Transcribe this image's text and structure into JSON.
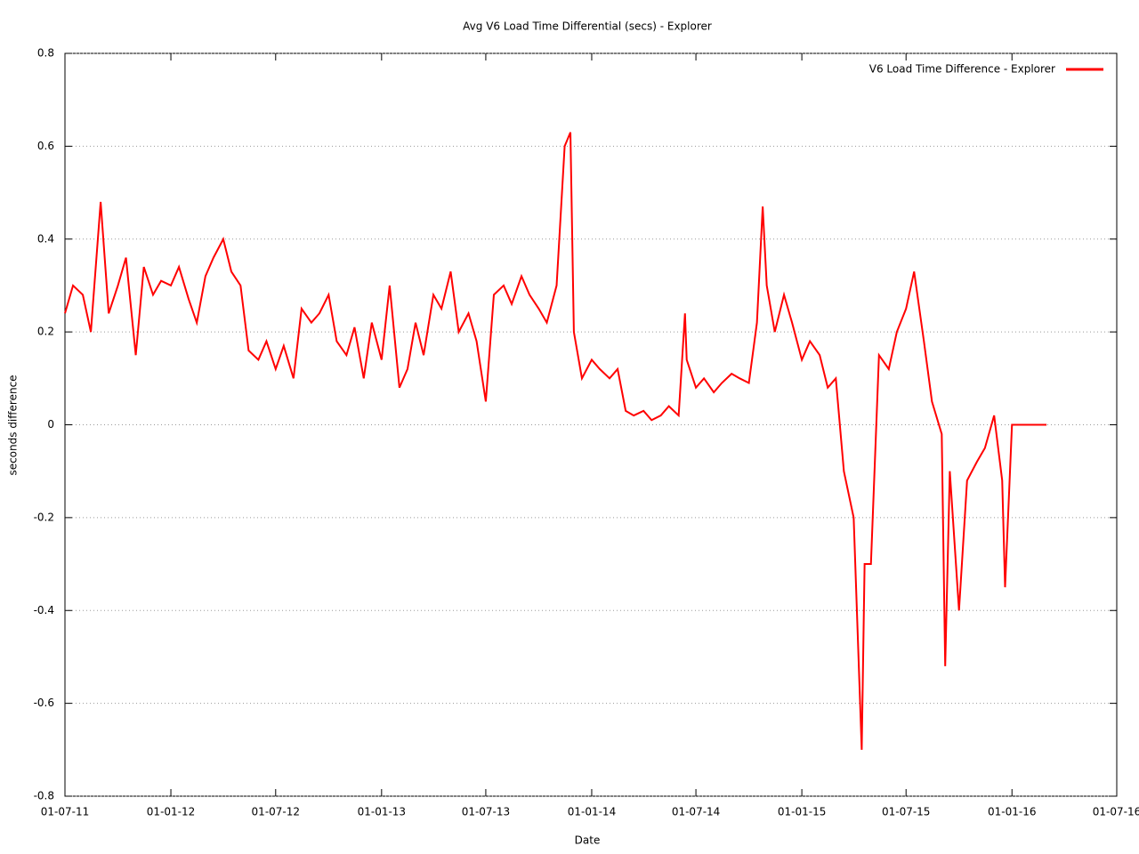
{
  "chart_data": {
    "type": "line",
    "title": "Avg V6 Load Time Differential (secs) - Explorer",
    "x_label": "Date",
    "y_label": "seconds difference",
    "legend": "top-right",
    "grid": "y",
    "xlim": [
      "2011-07-01",
      "2016-07-01"
    ],
    "xticks": [
      {
        "value": "2011-07-01",
        "label": "01-07-11"
      },
      {
        "value": "2012-01-01",
        "label": "01-01-12"
      },
      {
        "value": "2012-07-01",
        "label": "01-07-12"
      },
      {
        "value": "2013-01-01",
        "label": "01-01-13"
      },
      {
        "value": "2013-07-01",
        "label": "01-07-13"
      },
      {
        "value": "2014-01-01",
        "label": "01-01-14"
      },
      {
        "value": "2014-07-01",
        "label": "01-07-14"
      },
      {
        "value": "2015-01-01",
        "label": "01-01-15"
      },
      {
        "value": "2015-07-01",
        "label": "01-07-15"
      },
      {
        "value": "2016-01-01",
        "label": "01-01-16"
      },
      {
        "value": "2016-07-01",
        "label": "01-07-16"
      }
    ],
    "ylim": [
      -0.8,
      0.8
    ],
    "yticks": [
      -0.8,
      -0.6,
      -0.4,
      -0.2,
      0,
      0.2,
      0.4,
      0.6,
      0.8
    ],
    "x": [
      "2011-07-01",
      "2011-07-15",
      "2011-08-01",
      "2011-08-15",
      "2011-09-01",
      "2011-09-15",
      "2011-10-01",
      "2011-10-15",
      "2011-11-01",
      "2011-11-15",
      "2011-12-01",
      "2011-12-15",
      "2012-01-01",
      "2012-01-15",
      "2012-02-01",
      "2012-02-15",
      "2012-03-01",
      "2012-03-15",
      "2012-04-01",
      "2012-04-15",
      "2012-05-01",
      "2012-05-15",
      "2012-06-01",
      "2012-06-15",
      "2012-07-01",
      "2012-07-15",
      "2012-08-01",
      "2012-08-15",
      "2012-09-01",
      "2012-09-15",
      "2012-10-01",
      "2012-10-15",
      "2012-11-01",
      "2012-11-15",
      "2012-12-01",
      "2012-12-15",
      "2013-01-01",
      "2013-01-15",
      "2013-02-01",
      "2013-02-15",
      "2013-03-01",
      "2013-03-15",
      "2013-04-01",
      "2013-04-15",
      "2013-05-01",
      "2013-05-15",
      "2013-06-01",
      "2013-06-15",
      "2013-07-01",
      "2013-07-15",
      "2013-08-01",
      "2013-08-15",
      "2013-09-01",
      "2013-09-15",
      "2013-10-01",
      "2013-10-15",
      "2013-11-01",
      "2013-11-15",
      "2013-11-25",
      "2013-12-01",
      "2013-12-15",
      "2014-01-01",
      "2014-01-15",
      "2014-02-01",
      "2014-02-15",
      "2014-03-01",
      "2014-03-15",
      "2014-04-01",
      "2014-04-15",
      "2014-05-01",
      "2014-05-15",
      "2014-06-01",
      "2014-06-12",
      "2014-06-15",
      "2014-07-01",
      "2014-07-15",
      "2014-08-01",
      "2014-08-15",
      "2014-09-01",
      "2014-09-15",
      "2014-10-01",
      "2014-10-15",
      "2014-10-25",
      "2014-11-01",
      "2014-11-15",
      "2014-12-01",
      "2014-12-15",
      "2015-01-01",
      "2015-01-15",
      "2015-02-01",
      "2015-02-15",
      "2015-03-01",
      "2015-03-15",
      "2015-04-01",
      "2015-04-15",
      "2015-04-20",
      "2015-05-01",
      "2015-05-15",
      "2015-06-01",
      "2015-06-15",
      "2015-07-01",
      "2015-07-15",
      "2015-08-01",
      "2015-08-15",
      "2015-09-01",
      "2015-09-07",
      "2015-09-15",
      "2015-10-01",
      "2015-10-15",
      "2015-11-01",
      "2015-11-15",
      "2015-12-01",
      "2015-12-15",
      "2015-12-20",
      "2016-01-01",
      "2016-02-01",
      "2016-03-01"
    ],
    "series": [
      {
        "name": "V6 Load Time Difference - Explorer",
        "color": "#ff0000",
        "values": [
          0.24,
          0.3,
          0.28,
          0.2,
          0.48,
          0.24,
          0.3,
          0.36,
          0.15,
          0.34,
          0.28,
          0.31,
          0.3,
          0.34,
          0.27,
          0.22,
          0.32,
          0.36,
          0.4,
          0.33,
          0.3,
          0.16,
          0.14,
          0.18,
          0.12,
          0.17,
          0.1,
          0.25,
          0.22,
          0.24,
          0.28,
          0.18,
          0.15,
          0.21,
          0.1,
          0.22,
          0.14,
          0.3,
          0.08,
          0.12,
          0.22,
          0.15,
          0.28,
          0.25,
          0.33,
          0.2,
          0.24,
          0.18,
          0.05,
          0.28,
          0.3,
          0.26,
          0.32,
          0.28,
          0.25,
          0.22,
          0.3,
          0.6,
          0.63,
          0.2,
          0.1,
          0.14,
          0.12,
          0.1,
          0.12,
          0.03,
          0.02,
          0.03,
          0.01,
          0.02,
          0.04,
          0.02,
          0.24,
          0.14,
          0.08,
          0.1,
          0.07,
          0.09,
          0.11,
          0.1,
          0.09,
          0.22,
          0.47,
          0.3,
          0.2,
          0.28,
          0.22,
          0.14,
          0.18,
          0.15,
          0.08,
          0.1,
          -0.1,
          -0.2,
          -0.7,
          -0.3,
          -0.3,
          0.15,
          0.12,
          0.2,
          0.25,
          0.33,
          0.18,
          0.05,
          -0.02,
          -0.52,
          -0.1,
          -0.4,
          -0.12,
          -0.08,
          -0.05,
          0.02,
          -0.12,
          -0.35,
          0,
          0,
          0
        ]
      }
    ]
  }
}
